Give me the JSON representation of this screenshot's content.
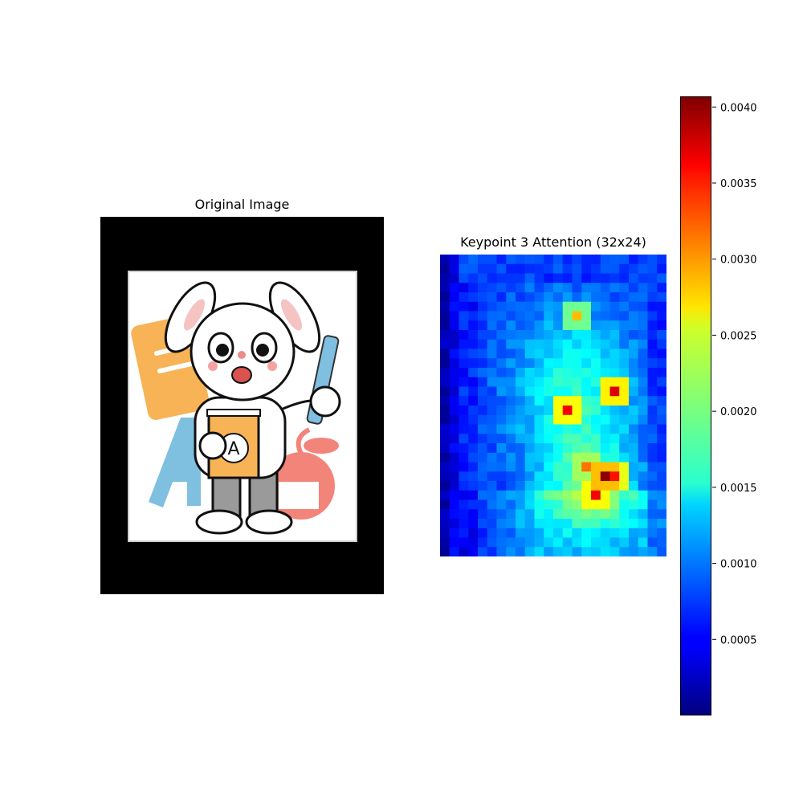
{
  "chart_data": [
    {
      "type": "image",
      "title": "Original Image",
      "description_visible": "cartoon bunny holding a book with letter A and a ruler, apple and letter A in background",
      "book_letter": "A"
    },
    {
      "type": "heatmap",
      "title": "Keypoint 3 Attention (32x24)",
      "rows": 32,
      "cols": 24,
      "colormap": "jet",
      "vmin": 0.0,
      "vmax": 0.00407,
      "colorbar": {
        "ticks": [
          0.0005,
          0.001,
          0.0015,
          0.002,
          0.0025,
          0.003,
          0.0035,
          0.004
        ],
        "tick_labels": [
          "0.0005",
          "0.0010",
          "0.0015",
          "0.0020",
          "0.0025",
          "0.0030",
          "0.0035",
          "0.0040"
        ]
      },
      "hotspots": [
        {
          "row": 14,
          "col": 18,
          "value": 0.0037
        },
        {
          "row": 16,
          "col": 13,
          "value": 0.0036
        },
        {
          "row": 23,
          "col": 17,
          "value": 0.004
        },
        {
          "row": 25,
          "col": 16,
          "value": 0.0036
        },
        {
          "row": 23,
          "col": 18,
          "value": 0.0035
        },
        {
          "row": 22,
          "col": 15,
          "value": 0.0031
        },
        {
          "row": 6,
          "col": 14,
          "value": 0.0028
        }
      ]
    }
  ]
}
